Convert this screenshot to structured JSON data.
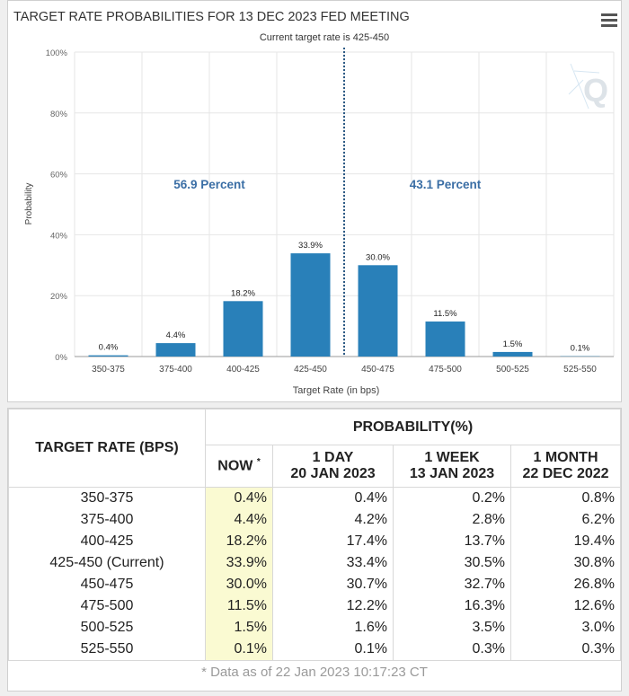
{
  "chart_data": {
    "type": "bar",
    "title": "TARGET RATE PROBABILITIES FOR 13 DEC 2023 FED MEETING",
    "subtitle": "Current target rate is 425-450",
    "xlabel": "Target Rate (in bps)",
    "ylabel": "Probability",
    "categories": [
      "350-375",
      "375-400",
      "400-425",
      "425-450",
      "450-475",
      "475-500",
      "500-525",
      "525-550"
    ],
    "values": [
      0.4,
      4.4,
      18.2,
      33.9,
      30.0,
      11.5,
      1.5,
      0.1
    ],
    "data_labels": [
      "0.4%",
      "4.4%",
      "18.2%",
      "33.9%",
      "30.0%",
      "11.5%",
      "1.5%",
      "0.1%"
    ],
    "yticks": [
      "0%",
      "20%",
      "40%",
      "60%",
      "80%",
      "100%"
    ],
    "ylim": [
      0,
      100
    ],
    "grid": true,
    "bar_color": "#2980b9",
    "annotations": [
      "56.9 Percent",
      "43.1 Percent"
    ],
    "divider_after_category": "425-450"
  },
  "table": {
    "rate_header": "TARGET RATE (BPS)",
    "prob_header": "PROBABILITY(%)",
    "columns": [
      {
        "line1": "NOW",
        "line2": ""
      },
      {
        "line1": "1 DAY",
        "line2": "20 JAN 2023"
      },
      {
        "line1": "1 WEEK",
        "line2": "13 JAN 2023"
      },
      {
        "line1": "1 MONTH",
        "line2": "22 DEC 2022"
      }
    ],
    "now_marker": "*",
    "rows": [
      {
        "rate": "350-375",
        "vals": [
          "0.4%",
          "0.4%",
          "0.2%",
          "0.8%"
        ]
      },
      {
        "rate": "375-400",
        "vals": [
          "4.4%",
          "4.2%",
          "2.8%",
          "6.2%"
        ]
      },
      {
        "rate": "400-425",
        "vals": [
          "18.2%",
          "17.4%",
          "13.7%",
          "19.4%"
        ]
      },
      {
        "rate": "425-450 (Current)",
        "vals": [
          "33.9%",
          "33.4%",
          "30.5%",
          "30.8%"
        ]
      },
      {
        "rate": "450-475",
        "vals": [
          "30.0%",
          "30.7%",
          "32.7%",
          "26.8%"
        ]
      },
      {
        "rate": "475-500",
        "vals": [
          "11.5%",
          "12.2%",
          "16.3%",
          "12.6%"
        ]
      },
      {
        "rate": "500-525",
        "vals": [
          "1.5%",
          "1.6%",
          "3.5%",
          "3.0%"
        ]
      },
      {
        "rate": "525-550",
        "vals": [
          "0.1%",
          "0.1%",
          "0.3%",
          "0.3%"
        ]
      }
    ],
    "footnote": "* Data as of 22 Jan 2023 10:17:23 CT",
    "now_highlight": "#fafad2"
  },
  "icons": {
    "menu": "hamburger-menu-icon",
    "logo": "q-watermark-icon"
  }
}
